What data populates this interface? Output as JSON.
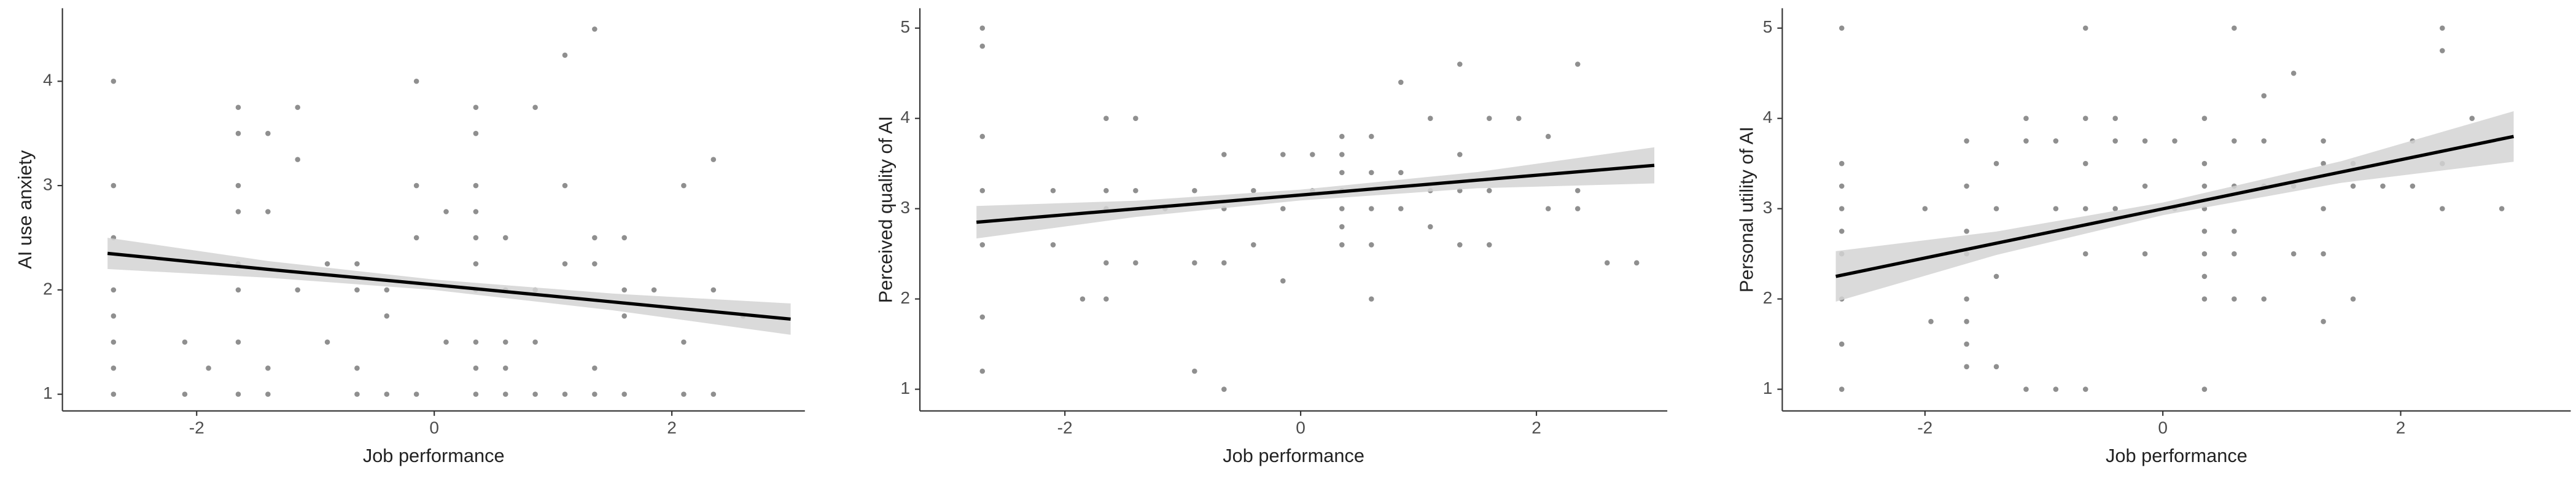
{
  "chart_data": [
    {
      "type": "scatter",
      "x_label": "Job performance",
      "y_label": "AI use anxiety",
      "xlim": [
        -3.13,
        3.12
      ],
      "ylim": [
        0.84,
        4.7
      ],
      "xticks": [
        -2,
        0,
        2
      ],
      "yticks": [
        1,
        2,
        3,
        4
      ],
      "color": "#333333",
      "fit_color": "#000000",
      "band_color": "#d3d3d3",
      "x": [
        -2.7,
        -2.7,
        -2.7,
        -2.7,
        -2.7,
        -2.7,
        -2.7,
        -2.7,
        -2.1,
        -2.1,
        -1.9,
        -1.65,
        -1.65,
        -1.65,
        -1.65,
        -1.65,
        -1.65,
        -1.65,
        -1.65,
        -1.4,
        -1.4,
        -1.4,
        -1.4,
        -1.15,
        -1.15,
        -1.15,
        -0.9,
        -0.9,
        -0.65,
        -0.65,
        -0.65,
        -0.65,
        -0.4,
        -0.4,
        -0.4,
        -0.15,
        -0.15,
        -0.15,
        -0.15,
        0.1,
        0.1,
        0.35,
        0.35,
        0.35,
        0.35,
        0.35,
        0.35,
        0.35,
        0.35,
        0.35,
        0.35,
        0.6,
        0.6,
        0.6,
        0.6,
        0.6,
        0.85,
        0.85,
        0.85,
        0.85,
        1.1,
        1.1,
        1.1,
        1.1,
        1.35,
        1.35,
        1.35,
        1.35,
        1.35,
        1.6,
        1.6,
        1.6,
        1.6,
        1.85,
        2.1,
        2.1,
        2.1,
        2.35,
        2.35,
        2.35,
        2.6
      ],
      "y": [
        4,
        3,
        2.5,
        2,
        1.75,
        1.5,
        1.25,
        1,
        1.5,
        1,
        1.25,
        3.75,
        3.5,
        3,
        2.75,
        2.25,
        2,
        1.5,
        1,
        3.5,
        2.75,
        1.25,
        1,
        3.75,
        3.25,
        2,
        2.25,
        1.5,
        2.25,
        2,
        1.25,
        1,
        2,
        1.75,
        1,
        4,
        3,
        2.5,
        1,
        2.75,
        1.5,
        3.75,
        3.5,
        3,
        2.75,
        2.5,
        2.25,
        2,
        1.5,
        1.25,
        1,
        2.5,
        2,
        1.5,
        1.25,
        1,
        3.75,
        2,
        1.5,
        1,
        4.25,
        3,
        2.25,
        1,
        4.5,
        2.5,
        2.25,
        1.25,
        1,
        2.5,
        2,
        1.75,
        1,
        2,
        3,
        1.5,
        1,
        3.25,
        2,
        1,
        1.75
      ],
      "fit": {
        "x": [
          -2.75,
          -1.4,
          0,
          1.5,
          3.0
        ],
        "y": [
          2.35,
          2.197,
          2.049,
          1.885,
          1.72
        ],
        "lower": [
          2.2,
          2.117,
          1.999,
          1.805,
          1.57
        ],
        "upper": [
          2.5,
          2.277,
          2.099,
          1.965,
          1.87
        ]
      }
    },
    {
      "type": "scatter",
      "x_label": "Job performance",
      "y_label": "Perceived quality of AI",
      "xlim": [
        -3.23,
        3.11
      ],
      "ylim": [
        0.76,
        5.22
      ],
      "xticks": [
        -2,
        0,
        2
      ],
      "yticks": [
        1,
        2,
        3,
        4,
        5
      ],
      "color": "#333333",
      "fit_color": "#000000",
      "band_color": "#d3d3d3",
      "x": [
        -2.7,
        -2.7,
        -2.7,
        -2.7,
        -2.7,
        -2.7,
        -2.7,
        -2.1,
        -2.1,
        -1.85,
        -1.65,
        -1.65,
        -1.65,
        -1.65,
        -1.65,
        -1.4,
        -1.4,
        -1.4,
        -1.15,
        -0.9,
        -0.9,
        -0.9,
        -0.65,
        -0.65,
        -0.65,
        -0.65,
        -0.4,
        -0.4,
        -0.15,
        -0.15,
        -0.15,
        0.1,
        0.1,
        0.35,
        0.35,
        0.35,
        0.35,
        0.35,
        0.35,
        0.35,
        0.6,
        0.6,
        0.6,
        0.6,
        0.6,
        0.85,
        0.85,
        0.85,
        1.1,
        1.1,
        1.1,
        1.35,
        1.35,
        1.35,
        1.35,
        1.6,
        1.6,
        1.6,
        1.85,
        2.1,
        2.1,
        2.35,
        2.35,
        2.35,
        2.6,
        2.85
      ],
      "y": [
        5,
        4.8,
        3.8,
        3.2,
        2.6,
        1.8,
        1.2,
        3.2,
        2.6,
        2,
        4,
        3.2,
        3,
        2.4,
        2,
        4,
        3.2,
        2.4,
        3,
        3.2,
        2.4,
        1.2,
        3.6,
        3,
        2.4,
        1,
        3.2,
        2.6,
        3.6,
        3,
        2.2,
        3.6,
        3.2,
        3.8,
        3.6,
        3.4,
        3.2,
        3,
        2.8,
        2.6,
        3.8,
        3.4,
        3,
        2.6,
        2,
        4.4,
        3.4,
        3,
        4,
        3.2,
        2.8,
        4.6,
        3.6,
        3.2,
        2.6,
        4,
        3.2,
        2.6,
        4,
        3.8,
        3,
        4.6,
        3.2,
        3,
        2.4,
        2.4
      ],
      "fit": {
        "x": [
          -2.75,
          -1.4,
          0,
          1.5,
          3.0
        ],
        "y": [
          2.85,
          2.998,
          3.151,
          3.316,
          3.48
        ],
        "lower": [
          2.67,
          2.908,
          3.091,
          3.226,
          3.28
        ],
        "upper": [
          3.03,
          3.088,
          3.211,
          3.406,
          3.68
        ]
      }
    },
    {
      "type": "scatter",
      "x_label": "Job performance",
      "y_label": "Personal utility of AI",
      "xlim": [
        -3.2,
        3.43
      ],
      "ylim": [
        0.76,
        5.22
      ],
      "xticks": [
        -2,
        0,
        2
      ],
      "yticks": [
        1,
        2,
        3,
        4,
        5
      ],
      "color": "#333333",
      "fit_color": "#000000",
      "band_color": "#d3d3d3",
      "x": [
        -2.7,
        -2.7,
        -2.7,
        -2.7,
        -2.7,
        -2.7,
        -2.7,
        -2.7,
        -2.7,
        -2.0,
        -1.95,
        -1.65,
        -1.65,
        -1.65,
        -1.65,
        -1.65,
        -1.65,
        -1.65,
        -1.65,
        -1.4,
        -1.4,
        -1.4,
        -1.4,
        -1.15,
        -1.15,
        -1.15,
        -0.9,
        -0.9,
        -0.9,
        -0.65,
        -0.65,
        -0.65,
        -0.65,
        -0.65,
        -0.65,
        -0.4,
        -0.4,
        -0.4,
        -0.15,
        -0.15,
        -0.15,
        0.1,
        0.1,
        0.35,
        0.35,
        0.35,
        0.35,
        0.35,
        0.35,
        0.35,
        0.35,
        0.35,
        0.6,
        0.6,
        0.6,
        0.6,
        0.6,
        0.6,
        0.85,
        0.85,
        0.85,
        0.85,
        1.1,
        1.1,
        1.1,
        1.35,
        1.35,
        1.35,
        1.35,
        1.35,
        1.6,
        1.6,
        1.6,
        1.85,
        2.1,
        2.1,
        2.35,
        2.35,
        2.35,
        2.35,
        2.6,
        2.85
      ],
      "y": [
        5,
        3.5,
        3.25,
        3,
        2.75,
        2.5,
        2,
        1.5,
        1,
        3,
        1.75,
        3.75,
        3.25,
        2.75,
        2.5,
        2,
        1.75,
        1.5,
        1.25,
        3.5,
        3,
        2.25,
        1.25,
        4,
        3.75,
        1,
        3.75,
        3,
        1,
        5,
        4,
        3.5,
        3,
        2.5,
        1,
        4,
        3.75,
        3,
        3.75,
        3.25,
        2.5,
        3.75,
        3,
        4,
        3.5,
        3.25,
        3,
        2.75,
        2.5,
        2.25,
        2,
        1,
        5,
        3.75,
        3.25,
        2.75,
        2.5,
        2,
        4.25,
        3.75,
        3.25,
        2,
        4.5,
        3.25,
        2.5,
        3.75,
        3.5,
        3,
        2.5,
        1.75,
        3.5,
        3.25,
        2,
        3.25,
        3.75,
        3.25,
        5,
        4.75,
        3.5,
        3,
        4,
        3
      ],
      "fit": {
        "x": [
          -2.75,
          -1.4,
          0,
          1.5,
          2.95
        ],
        "y": [
          2.25,
          2.617,
          2.998,
          3.406,
          3.8
        ],
        "lower": [
          1.97,
          2.487,
          2.928,
          3.286,
          3.52
        ],
        "upper": [
          2.53,
          2.747,
          3.068,
          3.526,
          4.08
        ]
      }
    }
  ]
}
